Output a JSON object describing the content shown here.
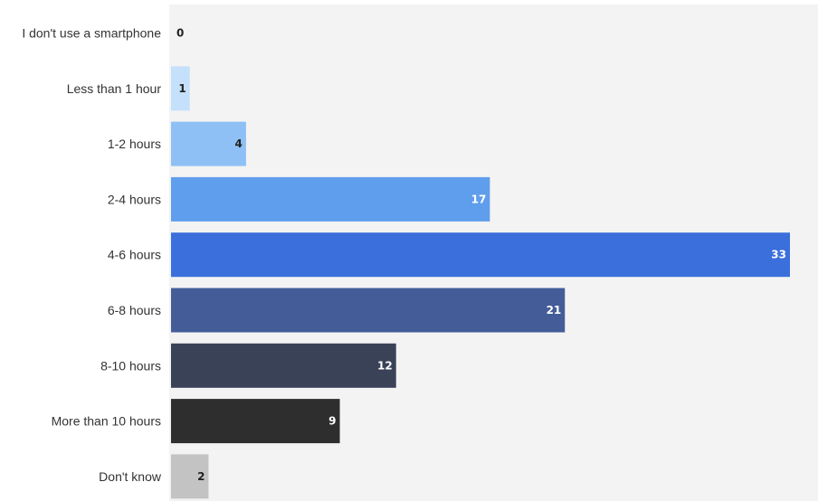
{
  "chart_data": {
    "type": "bar",
    "orientation": "horizontal",
    "categories": [
      "I don't use a smartphone",
      "Less than 1 hour",
      "1-2 hours",
      "2-4 hours",
      "4-6 hours",
      "6-8 hours",
      "8-10 hours",
      "More than 10 hours",
      "Don't know"
    ],
    "values": [
      0,
      1,
      4,
      17,
      33,
      21,
      12,
      9,
      2
    ],
    "colors": [
      "#d6e9fb",
      "#c4e0fb",
      "#8ec0f5",
      "#5f9ded",
      "#3a6fdc",
      "#445d98",
      "#3a4257",
      "#2e2e2e",
      "#c3c3c3"
    ],
    "value_label_colors": [
      "#222222",
      "#222222",
      "#222222",
      "#ffffff",
      "#ffffff",
      "#ffffff",
      "#ffffff",
      "#ffffff",
      "#222222"
    ],
    "plot_background": "#f3f3f3",
    "xlim": [
      0,
      33
    ],
    "title": "",
    "xlabel": "",
    "ylabel": "",
    "grid": false,
    "legend": "none"
  }
}
